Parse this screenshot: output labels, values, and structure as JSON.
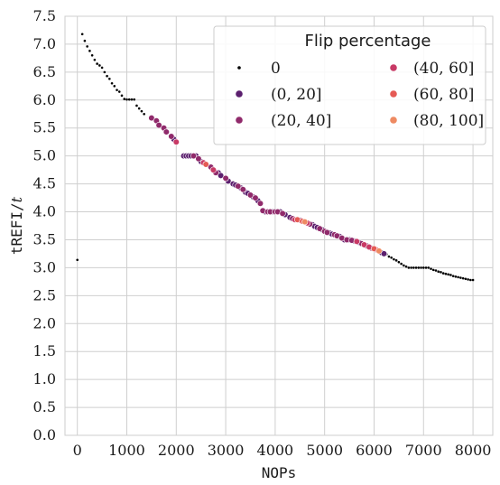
{
  "chart_data": {
    "type": "scatter",
    "xlabel": "NOPs",
    "ylabel": "tREFI/",
    "ylabel_italic": "t",
    "xlim": [
      -250,
      8400
    ],
    "ylim": [
      0,
      7.5
    ],
    "xticks": [
      0,
      1000,
      2000,
      3000,
      4000,
      5000,
      6000,
      7000,
      8000
    ],
    "xtick_labels": [
      "0",
      "1000",
      "2000",
      "3000",
      "4000",
      "5000",
      "6000",
      "7000",
      "8000"
    ],
    "yticks": [
      0,
      0.5,
      1,
      1.5,
      2,
      2.5,
      3,
      3.5,
      4,
      4.5,
      5,
      5.5,
      6,
      6.5,
      7,
      7.5
    ],
    "ytick_labels": [
      "0.0",
      "0.5",
      "1.0",
      "1.5",
      "2.0",
      "2.5",
      "3.0",
      "3.5",
      "4.0",
      "4.5",
      "5.0",
      "5.5",
      "6.0",
      "6.5",
      "7.0",
      "7.5"
    ],
    "grid": true,
    "legend": {
      "title": "Flip percentage",
      "position": "top-right",
      "entries": [
        {
          "label": "0",
          "color": "#000000",
          "marker": "small"
        },
        {
          "label": "(0, 20]",
          "color": "#5b1f6e",
          "marker": "large"
        },
        {
          "label": "(20, 40]",
          "color": "#902a6b",
          "marker": "large"
        },
        {
          "label": "(40, 60]",
          "color": "#c83a66",
          "marker": "large"
        },
        {
          "label": "(60, 80]",
          "color": "#e55a55",
          "marker": "large"
        },
        {
          "label": "(80, 100]",
          "color": "#ee8a62",
          "marker": "large"
        }
      ]
    },
    "series": [
      {
        "name": "0",
        "color": "#000000",
        "points": [
          [
            0,
            3.14
          ],
          [
            100,
            7.18
          ],
          [
            150,
            7.06
          ],
          [
            200,
            6.96
          ],
          [
            250,
            6.88
          ],
          [
            300,
            6.8
          ],
          [
            350,
            6.72
          ],
          [
            400,
            6.65
          ],
          [
            450,
            6.62
          ],
          [
            500,
            6.58
          ],
          [
            550,
            6.5
          ],
          [
            600,
            6.43
          ],
          [
            650,
            6.38
          ],
          [
            700,
            6.3
          ],
          [
            750,
            6.25
          ],
          [
            800,
            6.18
          ],
          [
            850,
            6.15
          ],
          [
            900,
            6.08
          ],
          [
            950,
            6.02
          ],
          [
            1000,
            6.01
          ],
          [
            1050,
            6.01
          ],
          [
            1100,
            6.01
          ],
          [
            1150,
            6.01
          ],
          [
            1200,
            5.9
          ],
          [
            1250,
            5.85
          ],
          [
            1300,
            5.8
          ],
          [
            1350,
            5.75
          ],
          [
            6250,
            3.24
          ],
          [
            6300,
            3.2
          ],
          [
            6350,
            3.18
          ],
          [
            6400,
            3.15
          ],
          [
            6450,
            3.13
          ],
          [
            6500,
            3.1
          ],
          [
            6550,
            3.07
          ],
          [
            6600,
            3.04
          ],
          [
            6650,
            3.02
          ],
          [
            6700,
            3.0
          ],
          [
            6750,
            3.0
          ],
          [
            6800,
            3.0
          ],
          [
            6850,
            3.0
          ],
          [
            6900,
            3.0
          ],
          [
            6950,
            3.0
          ],
          [
            7000,
            3.0
          ],
          [
            7050,
            3.0
          ],
          [
            7100,
            3.0
          ],
          [
            7150,
            2.98
          ],
          [
            7200,
            2.96
          ],
          [
            7250,
            2.95
          ],
          [
            7300,
            2.93
          ],
          [
            7350,
            2.92
          ],
          [
            7400,
            2.9
          ],
          [
            7450,
            2.89
          ],
          [
            7500,
            2.88
          ],
          [
            7550,
            2.87
          ],
          [
            7600,
            2.85
          ],
          [
            7650,
            2.84
          ],
          [
            7700,
            2.83
          ],
          [
            7750,
            2.82
          ],
          [
            7800,
            2.81
          ],
          [
            7850,
            2.8
          ],
          [
            7900,
            2.79
          ],
          [
            7950,
            2.78
          ],
          [
            8000,
            2.78
          ]
        ]
      },
      {
        "name": "(0, 20]",
        "color": "#5b1f6e",
        "points": [
          [
            1950,
            5.3
          ],
          [
            2150,
            5.0
          ],
          [
            2200,
            5.0
          ],
          [
            2250,
            5.0
          ],
          [
            2300,
            5.0
          ],
          [
            2400,
            5.0
          ],
          [
            2500,
            4.9
          ],
          [
            2850,
            4.7
          ],
          [
            2900,
            4.65
          ],
          [
            3050,
            4.55
          ],
          [
            3150,
            4.5
          ],
          [
            3200,
            4.48
          ],
          [
            3300,
            4.43
          ],
          [
            3400,
            4.35
          ],
          [
            3450,
            4.33
          ],
          [
            3550,
            4.27
          ],
          [
            3650,
            4.2
          ],
          [
            3800,
            4.0
          ],
          [
            3950,
            4.0
          ],
          [
            4100,
            4.0
          ],
          [
            4200,
            3.95
          ],
          [
            4300,
            3.9
          ],
          [
            4750,
            3.77
          ],
          [
            4800,
            3.74
          ],
          [
            4850,
            3.72
          ],
          [
            4950,
            3.68
          ],
          [
            5100,
            3.62
          ],
          [
            5150,
            3.6
          ],
          [
            5300,
            3.56
          ],
          [
            5400,
            3.5
          ],
          [
            5500,
            3.5
          ],
          [
            5600,
            3.48
          ],
          [
            5700,
            3.45
          ],
          [
            5850,
            3.39
          ],
          [
            6150,
            3.27
          ],
          [
            6200,
            3.25
          ]
        ]
      },
      {
        "name": "(20, 40]",
        "color": "#902a6b",
        "points": [
          [
            1500,
            5.68
          ],
          [
            1600,
            5.63
          ],
          [
            1650,
            5.55
          ],
          [
            1750,
            5.5
          ],
          [
            1800,
            5.43
          ],
          [
            1900,
            5.35
          ],
          [
            2350,
            5.0
          ],
          [
            2450,
            4.95
          ],
          [
            2700,
            4.8
          ],
          [
            2800,
            4.7
          ],
          [
            3000,
            4.6
          ],
          [
            3250,
            4.46
          ],
          [
            3350,
            4.4
          ],
          [
            3500,
            4.3
          ],
          [
            3600,
            4.25
          ],
          [
            3700,
            4.15
          ],
          [
            3750,
            4.02
          ],
          [
            3850,
            4.0
          ],
          [
            3900,
            4.0
          ],
          [
            4000,
            4.0
          ],
          [
            4050,
            4.0
          ],
          [
            4150,
            3.97
          ],
          [
            4350,
            3.88
          ],
          [
            4500,
            3.85
          ],
          [
            4700,
            3.78
          ],
          [
            4900,
            3.7
          ],
          [
            5000,
            3.65
          ],
          [
            5050,
            3.63
          ],
          [
            5200,
            3.59
          ],
          [
            5250,
            3.57
          ],
          [
            5350,
            3.53
          ],
          [
            5450,
            3.5
          ],
          [
            5550,
            3.49
          ],
          [
            5750,
            3.43
          ],
          [
            5950,
            3.35
          ]
        ]
      },
      {
        "name": "(40, 60]",
        "color": "#c83a66",
        "points": [
          [
            2000,
            5.25
          ],
          [
            2550,
            4.88
          ],
          [
            2750,
            4.75
          ],
          [
            4400,
            3.86
          ],
          [
            4650,
            3.8
          ],
          [
            5650,
            3.47
          ],
          [
            5800,
            3.41
          ],
          [
            5900,
            3.37
          ],
          [
            6050,
            3.32
          ]
        ]
      },
      {
        "name": "(60, 80]",
        "color": "#e55a55",
        "points": [
          [
            2600,
            4.85
          ],
          [
            4450,
            3.86
          ],
          [
            4550,
            3.83
          ],
          [
            6000,
            3.34
          ]
        ]
      },
      {
        "name": "(80, 100]",
        "color": "#ee8a62",
        "points": [
          [
            4600,
            3.82
          ],
          [
            6100,
            3.3
          ]
        ]
      }
    ]
  }
}
